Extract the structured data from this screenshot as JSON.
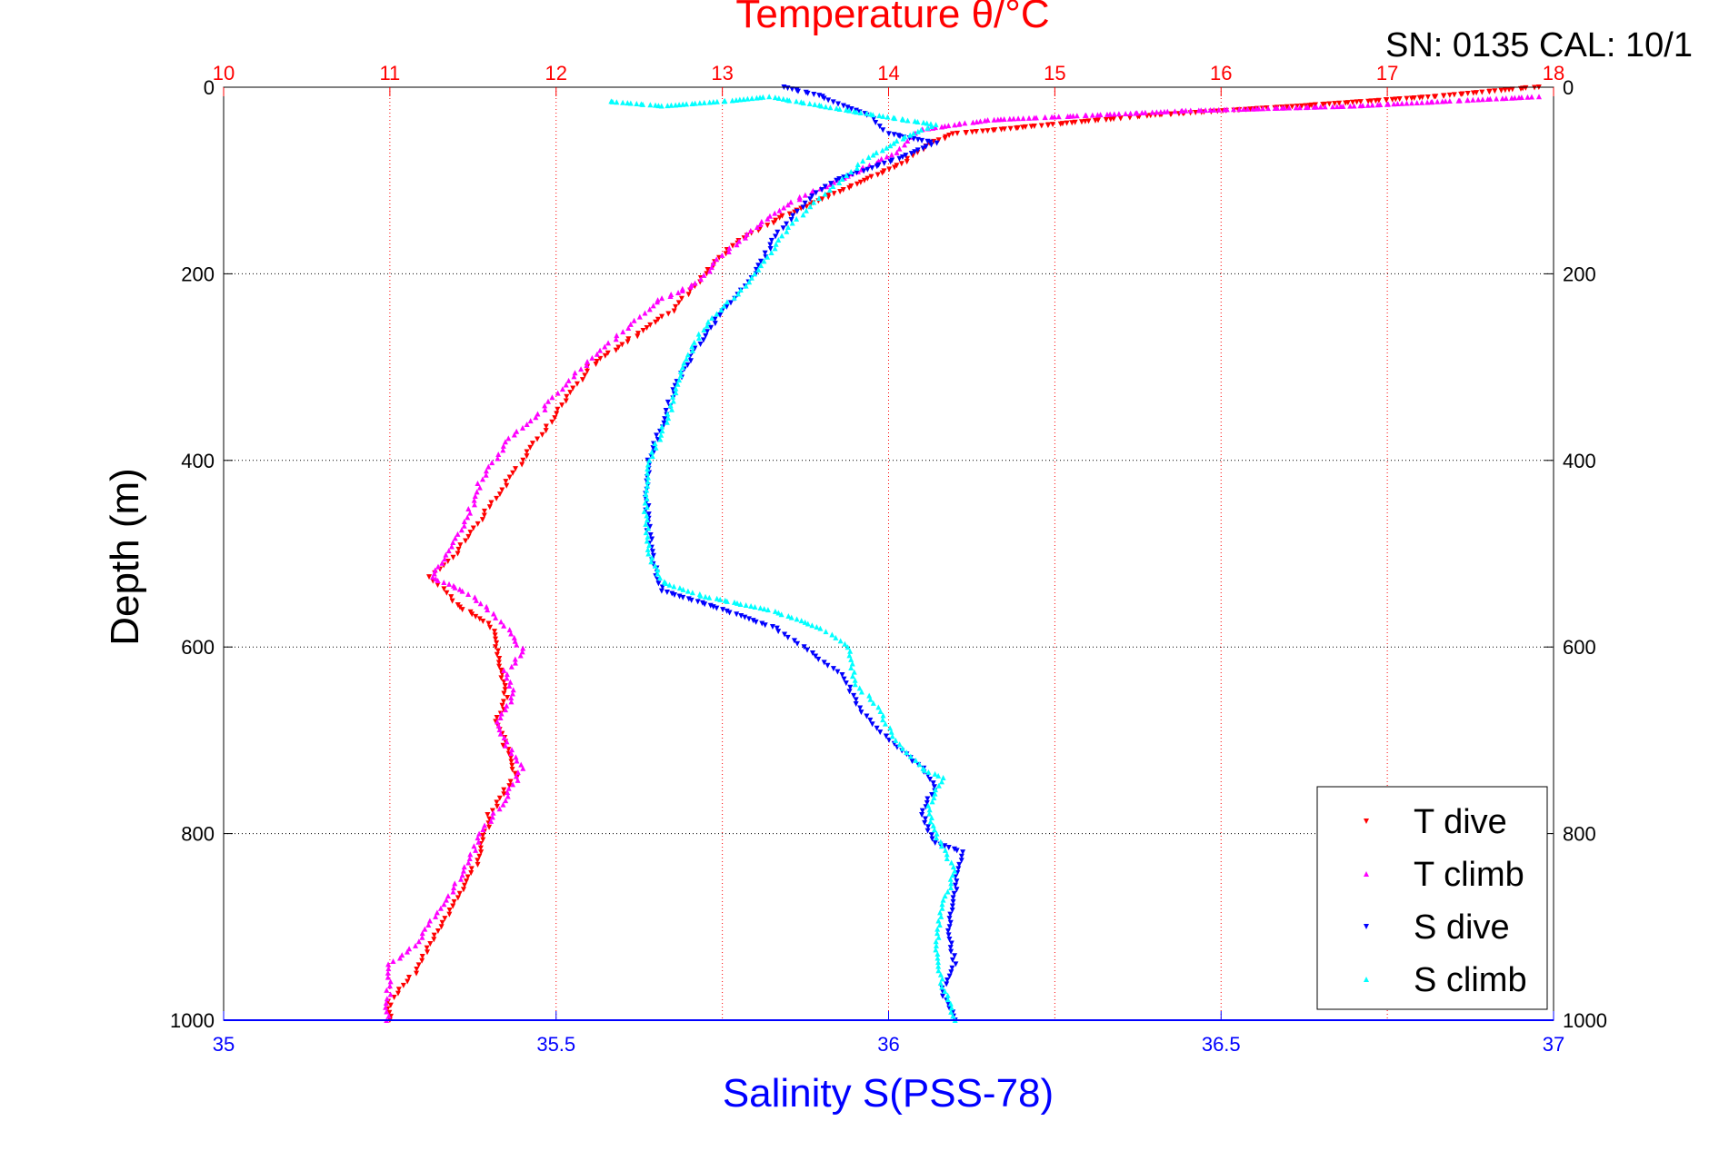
{
  "chart_data": {
    "type": "scatter",
    "title_top": "Temperature θ/°C",
    "header_text": "SN: 0135  CAL: 10/1",
    "xlabel_bottom": "Salinity S(PSS-78)",
    "ylabel": "Depth (m)",
    "y_axis": {
      "range": [
        0,
        1000
      ],
      "reversed": true,
      "ticks": [
        0,
        200,
        400,
        600,
        800,
        1000
      ]
    },
    "x_top_axis": {
      "label": "Temperature θ/°C",
      "range": [
        10,
        18
      ],
      "ticks": [
        10,
        11,
        12,
        13,
        14,
        15,
        16,
        17,
        18
      ],
      "color": "#ff0000"
    },
    "x_bottom_axis": {
      "label": "Salinity S(PSS-78)",
      "range": [
        35,
        37
      ],
      "ticks": [
        "35",
        "35.5",
        "36",
        "36.5",
        "37"
      ],
      "tick_values": [
        35,
        35.5,
        36,
        36.5,
        37
      ],
      "color": "#0000ff"
    },
    "grid": true,
    "legend_position": "bottom-right",
    "legend": [
      {
        "label": "T dive",
        "color": "#ff0000",
        "marker": "triangle-down"
      },
      {
        "label": "T climb",
        "color": "#ff00ff",
        "marker": "triangle-up"
      },
      {
        "label": "S dive",
        "color": "#0000ff",
        "marker": "triangle-down"
      },
      {
        "label": "S climb",
        "color": "#00ffff",
        "marker": "triangle-up"
      }
    ],
    "series": [
      {
        "name": "T dive",
        "axis": "temperature",
        "color": "#ff0000",
        "marker": "down",
        "points": [
          [
            17.9,
            0
          ],
          [
            17.3,
            10
          ],
          [
            16.5,
            20
          ],
          [
            15.6,
            30
          ],
          [
            15.0,
            40
          ],
          [
            14.4,
            50
          ],
          [
            14.25,
            60
          ],
          [
            14.1,
            80
          ],
          [
            13.85,
            100
          ],
          [
            13.6,
            120
          ],
          [
            13.35,
            140
          ],
          [
            13.05,
            170
          ],
          [
            12.9,
            200
          ],
          [
            12.7,
            240
          ],
          [
            12.45,
            270
          ],
          [
            12.2,
            300
          ],
          [
            12.0,
            350
          ],
          [
            11.8,
            400
          ],
          [
            11.6,
            450
          ],
          [
            11.4,
            500
          ],
          [
            11.25,
            525
          ],
          [
            11.4,
            555
          ],
          [
            11.6,
            575
          ],
          [
            11.65,
            600
          ],
          [
            11.67,
            625
          ],
          [
            11.7,
            650
          ],
          [
            11.65,
            680
          ],
          [
            11.7,
            710
          ],
          [
            11.75,
            740
          ],
          [
            11.6,
            780
          ],
          [
            11.55,
            820
          ],
          [
            11.45,
            860
          ],
          [
            11.3,
            900
          ],
          [
            11.15,
            950
          ],
          [
            11.0,
            980
          ],
          [
            11.0,
            1000
          ]
        ]
      },
      {
        "name": "T climb",
        "axis": "temperature",
        "color": "#ff00ff",
        "marker": "up",
        "points": [
          [
            17.9,
            10
          ],
          [
            16.8,
            20
          ],
          [
            15.8,
            25
          ],
          [
            14.6,
            35
          ],
          [
            14.2,
            45
          ],
          [
            14.05,
            70
          ],
          [
            13.75,
            95
          ],
          [
            13.45,
            120
          ],
          [
            13.2,
            150
          ],
          [
            13.0,
            180
          ],
          [
            12.85,
            210
          ],
          [
            12.6,
            230
          ],
          [
            12.35,
            270
          ],
          [
            12.1,
            310
          ],
          [
            11.9,
            350
          ],
          [
            11.7,
            380
          ],
          [
            11.55,
            420
          ],
          [
            11.45,
            470
          ],
          [
            11.3,
            510
          ],
          [
            11.25,
            525
          ],
          [
            11.45,
            540
          ],
          [
            11.6,
            560
          ],
          [
            11.75,
            590
          ],
          [
            11.8,
            605
          ],
          [
            11.7,
            625
          ],
          [
            11.75,
            650
          ],
          [
            11.65,
            680
          ],
          [
            11.72,
            710
          ],
          [
            11.8,
            730
          ],
          [
            11.7,
            760
          ],
          [
            11.55,
            800
          ],
          [
            11.45,
            840
          ],
          [
            11.3,
            880
          ],
          [
            11.15,
            920
          ],
          [
            11.0,
            940
          ],
          [
            10.98,
            1000
          ]
        ]
      },
      {
        "name": "S dive",
        "axis": "salinity",
        "color": "#0000ff",
        "marker": "down",
        "points": [
          [
            35.84,
            0
          ],
          [
            35.9,
            10
          ],
          [
            35.93,
            20
          ],
          [
            35.97,
            30
          ],
          [
            36.0,
            50
          ],
          [
            36.07,
            60
          ],
          [
            36.02,
            75
          ],
          [
            35.92,
            100
          ],
          [
            35.88,
            120
          ],
          [
            35.83,
            160
          ],
          [
            35.8,
            200
          ],
          [
            35.75,
            240
          ],
          [
            35.71,
            280
          ],
          [
            35.68,
            320
          ],
          [
            35.66,
            360
          ],
          [
            35.64,
            400
          ],
          [
            35.635,
            440
          ],
          [
            35.64,
            480
          ],
          [
            35.65,
            520
          ],
          [
            35.66,
            540
          ],
          [
            35.75,
            560
          ],
          [
            35.83,
            580
          ],
          [
            35.87,
            600
          ],
          [
            35.93,
            630
          ],
          [
            35.96,
            670
          ],
          [
            36.0,
            700
          ],
          [
            36.05,
            730
          ],
          [
            36.07,
            750
          ],
          [
            36.05,
            780
          ],
          [
            36.07,
            810
          ],
          [
            36.11,
            820
          ],
          [
            36.1,
            860
          ],
          [
            36.09,
            900
          ],
          [
            36.1,
            940
          ],
          [
            36.08,
            970
          ],
          [
            36.1,
            1000
          ]
        ]
      },
      {
        "name": "S climb",
        "axis": "salinity",
        "color": "#00ffff",
        "marker": "up",
        "points": [
          [
            35.58,
            15
          ],
          [
            35.66,
            20
          ],
          [
            35.75,
            15
          ],
          [
            35.82,
            10
          ],
          [
            35.94,
            25
          ],
          [
            36.07,
            40
          ],
          [
            36.02,
            55
          ],
          [
            35.97,
            75
          ],
          [
            35.91,
            110
          ],
          [
            35.85,
            150
          ],
          [
            35.8,
            200
          ],
          [
            35.76,
            230
          ],
          [
            35.72,
            260
          ],
          [
            35.69,
            300
          ],
          [
            35.67,
            350
          ],
          [
            35.64,
            400
          ],
          [
            35.635,
            450
          ],
          [
            35.64,
            500
          ],
          [
            35.66,
            530
          ],
          [
            35.72,
            545
          ],
          [
            35.82,
            560
          ],
          [
            35.9,
            580
          ],
          [
            35.94,
            600
          ],
          [
            35.95,
            640
          ],
          [
            35.98,
            660
          ],
          [
            36.01,
            700
          ],
          [
            36.05,
            730
          ],
          [
            36.08,
            740
          ],
          [
            36.06,
            770
          ],
          [
            36.07,
            800
          ],
          [
            36.1,
            840
          ],
          [
            36.08,
            880
          ],
          [
            36.07,
            920
          ],
          [
            36.08,
            960
          ],
          [
            36.1,
            1000
          ]
        ]
      }
    ]
  }
}
